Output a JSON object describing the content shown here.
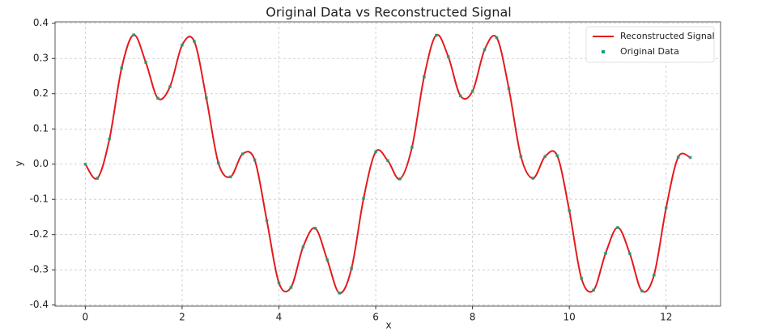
{
  "chart_data": {
    "type": "line",
    "title": "Original Data vs Reconstructed Signal",
    "x_label": "x",
    "y_label": "y",
    "x": [
      0,
      0.25,
      0.5,
      0.75,
      1,
      1.25,
      1.5,
      1.75,
      2,
      2.25,
      2.5,
      2.75,
      3,
      3.25,
      3.5,
      3.75,
      4,
      4.25,
      4.5,
      4.75,
      5,
      5.25,
      5.5,
      5.75,
      6,
      6.25,
      6.5,
      6.75,
      7,
      7.25,
      7.5,
      7.75,
      8,
      8.25,
      8.5,
      8.75,
      9,
      9.25,
      9.5,
      9.75,
      10,
      10.25,
      10.5,
      10.75,
      11,
      11.25,
      11.5,
      11.75,
      12,
      12.25,
      12.5
    ],
    "series": [
      {
        "name": "Reconstructed Signal",
        "type": "line",
        "color": "#e41a1c",
        "values": [
          0,
          -0.04,
          0.072,
          0.273,
          0.367,
          0.289,
          0.187,
          0.22,
          0.338,
          0.349,
          0.188,
          0.003,
          -0.036,
          0.029,
          0.012,
          -0.16,
          -0.337,
          -0.35,
          -0.235,
          -0.182,
          -0.272,
          -0.366,
          -0.296,
          -0.097,
          0.035,
          0.01,
          -0.042,
          0.048,
          0.248,
          0.366,
          0.305,
          0.194,
          0.207,
          0.325,
          0.359,
          0.215,
          0.022,
          -0.04,
          0.022,
          0.024,
          -0.132,
          -0.324,
          -0.358,
          -0.253,
          -0.18,
          -0.254,
          -0.36,
          -0.315,
          -0.124,
          0.02,
          0.019
        ]
      },
      {
        "name": "Original Data",
        "type": "scatter",
        "color": "#1b9e77",
        "values": [
          0,
          -0.04,
          0.072,
          0.273,
          0.367,
          0.289,
          0.187,
          0.22,
          0.338,
          0.349,
          0.188,
          0.003,
          -0.036,
          0.029,
          0.012,
          -0.16,
          -0.337,
          -0.35,
          -0.235,
          -0.182,
          -0.272,
          -0.366,
          -0.296,
          -0.097,
          0.035,
          0.01,
          -0.042,
          0.048,
          0.248,
          0.366,
          0.305,
          0.194,
          0.207,
          0.325,
          0.359,
          0.215,
          0.022,
          -0.04,
          0.022,
          0.024,
          -0.132,
          -0.324,
          -0.358,
          -0.253,
          -0.18,
          -0.254,
          -0.36,
          -0.315,
          -0.124,
          0.02,
          0.019
        ]
      }
    ],
    "xlim": [
      -0.625,
      13.125
    ],
    "ylim": [
      -0.403,
      0.404
    ],
    "xticks": [
      0,
      2,
      4,
      6,
      8,
      10,
      12
    ],
    "yticks": [
      {
        "value": -0.4,
        "label": "-0.4"
      },
      {
        "value": -0.3,
        "label": "-0.3"
      },
      {
        "value": -0.2,
        "label": "-0.2"
      },
      {
        "value": -0.1,
        "label": "-0.1"
      },
      {
        "value": 0,
        "label": "0.0"
      },
      {
        "value": 0.1,
        "label": "0.1"
      },
      {
        "value": 0.2,
        "label": "0.2"
      },
      {
        "value": 0.3,
        "label": "0.3"
      },
      {
        "value": 0.4,
        "label": "0.4"
      }
    ],
    "grid": true,
    "legend": "upper right"
  }
}
